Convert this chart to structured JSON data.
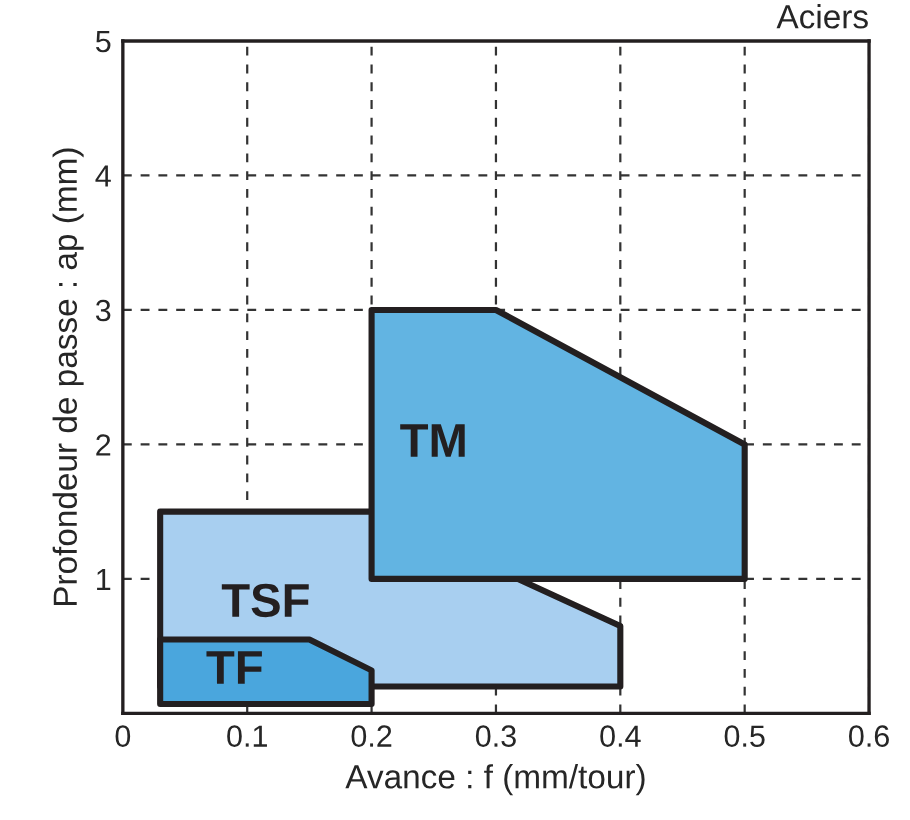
{
  "chart_data": {
    "type": "area",
    "title": "Aciers",
    "xlabel": "Avance : f (mm/tour)",
    "ylabel": "Profondeur de passe : ap (mm)",
    "series": [
      {
        "name": "TSF",
        "color": "#a8cff0",
        "x": [
          0.03,
          0.03,
          0.2,
          0.4,
          0.4
        ],
        "values": [
          0.2,
          1.5,
          1.5,
          0.65,
          0.2
        ]
      },
      {
        "name": "TM",
        "color": "#62b4e2",
        "x": [
          0.2,
          0.2,
          0.3,
          0.5,
          0.5
        ],
        "values": [
          1,
          3,
          3,
          2,
          1
        ]
      },
      {
        "name": "TF",
        "color": "#4aa6dd",
        "x": [
          0.03,
          0.03,
          0.15,
          0.2,
          0.2
        ],
        "values": [
          0.07,
          0.55,
          0.55,
          0.32,
          0.07
        ]
      }
    ],
    "xlim": [
      0,
      0.6
    ],
    "xticks": [
      0,
      0.1,
      0.2,
      0.3,
      0.4,
      0.5,
      0.6
    ],
    "ylim": [
      0,
      5
    ],
    "yticks": [
      1,
      2,
      3,
      4,
      5
    ],
    "grid": true
  }
}
